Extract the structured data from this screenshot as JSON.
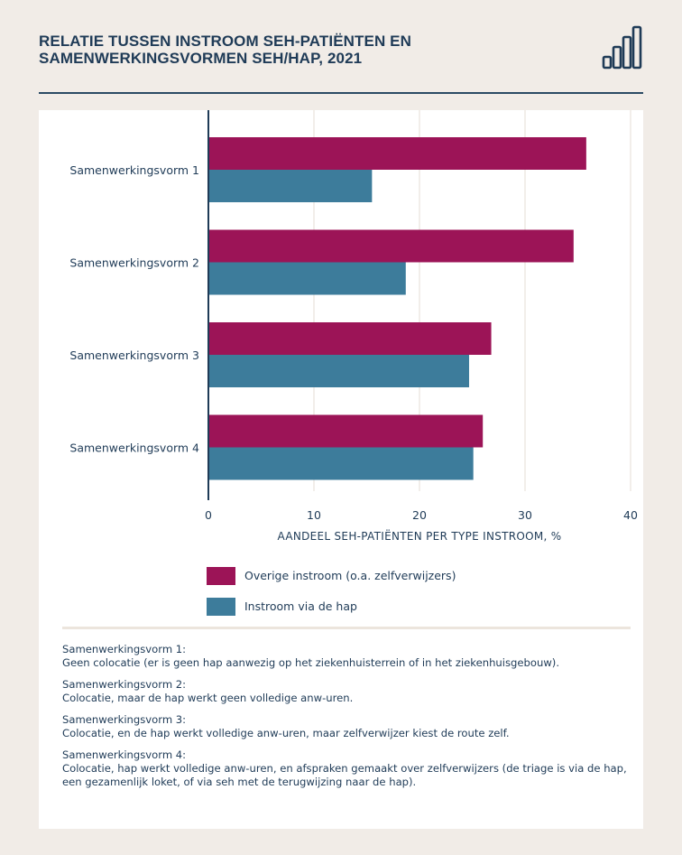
{
  "header": {
    "title_line1": "RELATIE TUSSEN INSTROOM SEH-PATIËNTEN EN",
    "title_line2": "SAMENWERKINGSVORMEN SEH/HAP, 2021",
    "logo_icon": "bar-chart-icon"
  },
  "colors": {
    "background": "#f1ece7",
    "card": "#ffffff",
    "series_overige": "#9c1457",
    "series_hap": "#3d7c9b",
    "text": "#1f3b57",
    "grid": "#e6ded6"
  },
  "chart_data": {
    "type": "bar",
    "orientation": "horizontal",
    "categories": [
      "Samenwerkingsvorm 1",
      "Samenwerkingsvorm 2",
      "Samenwerkingsvorm 3",
      "Samenwerkingsvorm 4"
    ],
    "series": [
      {
        "name": "Overige instroom (o.a. zelfverwijzers)",
        "values": [
          35.8,
          34.6,
          26.8,
          26.0
        ]
      },
      {
        "name": "Instroom via de hap",
        "values": [
          15.5,
          18.7,
          24.7,
          25.1
        ]
      }
    ],
    "xlabel": "AANDEEL SEH-PATIËNTEN PER TYPE INSTROOM, %",
    "xlim": [
      0,
      40
    ],
    "xticks": [
      0,
      10,
      20,
      30,
      40
    ],
    "grid": true,
    "legend": "bottom"
  },
  "notes": [
    {
      "head": "Samenwerkingsvorm 1:",
      "body": "Geen colocatie (er is geen hap aanwezig op het ziekenhuisterrein of in het ziekenhuisgebouw)."
    },
    {
      "head": "Samenwerkingsvorm 2:",
      "body": "Colocatie, maar de hap werkt geen volledige anw-uren."
    },
    {
      "head": "Samenwerkingsvorm 3:",
      "body": "Colocatie, en de hap werkt volledige anw-uren, maar zelfverwijzer kiest de route zelf."
    },
    {
      "head": "Samenwerkingsvorm 4:",
      "body": "Colocatie, hap werkt volledige anw-uren, en afspraken gemaakt over zelfverwijzers (de triage is via de hap, een gezamenlijk loket, of via seh met de terugwijzing naar de hap)."
    }
  ]
}
